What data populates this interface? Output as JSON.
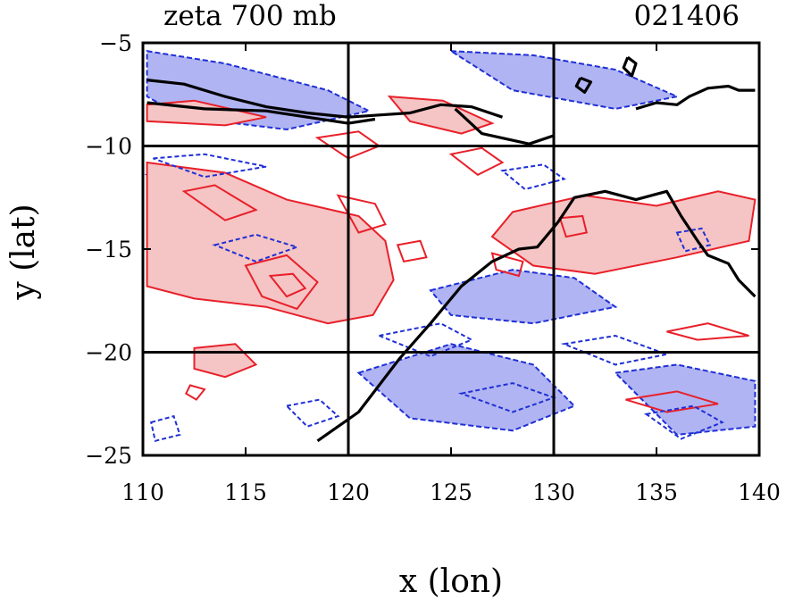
{
  "chart_data": {
    "type": "contour",
    "title": "zeta 700 mb",
    "label_right": "021406",
    "xlabel": "x (lon)",
    "ylabel": "y (lat)",
    "xlim": [
      110,
      140
    ],
    "ylim": [
      -25,
      -5
    ],
    "x_ticks": [
      110,
      115,
      120,
      125,
      130,
      135,
      140
    ],
    "x_tick_labels": [
      "110",
      "115",
      "120",
      "125",
      "130",
      "135",
      "140"
    ],
    "y_ticks": [
      -5,
      -10,
      -15,
      -20,
      -25
    ],
    "y_tick_labels": [
      "−5",
      "−10",
      "−15",
      "−20",
      "−25"
    ],
    "gridlines_lon": [
      120,
      130
    ],
    "gridlines_lat": [
      -10,
      -20
    ],
    "colors": {
      "positive_line": "#e8202a",
      "positive_fill": "#f5c4c4",
      "negative_line": "#1f2fd6",
      "negative_fill": "#b0b4f2",
      "coast": "#000000"
    },
    "positive_regions": [
      {
        "lon": [
          110.2,
          114,
          117,
          120.5,
          121.8,
          122.2,
          121.2,
          119,
          116,
          112.5,
          110.2
        ],
        "lat": [
          -10.8,
          -11.3,
          -12.6,
          -13.4,
          -14.6,
          -16.5,
          -18.2,
          -18.6,
          -17.8,
          -17.4,
          -16.8
        ]
      },
      {
        "lon": [
          112.5,
          114.5,
          115.5,
          114,
          112.5
        ],
        "lat": [
          -19.8,
          -19.6,
          -20.6,
          -21.2,
          -20.8
        ]
      },
      {
        "lon": [
          128,
          131.5,
          135,
          138,
          139.8,
          139.5,
          136,
          132,
          129,
          127,
          128
        ],
        "lat": [
          -13.2,
          -12.4,
          -12.9,
          -12.2,
          -12.6,
          -14.6,
          -15.4,
          -16.2,
          -15.8,
          -14.4,
          -13.2
        ]
      },
      {
        "lon": [
          122,
          124.6,
          127,
          125.5,
          123,
          122
        ],
        "lat": [
          -7.6,
          -7.8,
          -8.9,
          -9.4,
          -8.8,
          -7.6
        ]
      },
      {
        "lon": [
          110.2,
          112.5,
          116,
          114,
          110.2
        ],
        "lat": [
          -8.0,
          -7.8,
          -8.6,
          -9.0,
          -8.8
        ]
      }
    ],
    "negative_regions": [
      {
        "lon": [
          110.2,
          114,
          119,
          121,
          117,
          112,
          110.2
        ],
        "lat": [
          -5.4,
          -6.0,
          -7.3,
          -8.3,
          -9.2,
          -8.6,
          -7.6
        ]
      },
      {
        "lon": [
          125,
          129,
          133,
          136,
          133,
          128,
          125
        ],
        "lat": [
          -5.4,
          -5.6,
          -6.3,
          -7.6,
          -8.2,
          -7.3,
          -5.4
        ]
      },
      {
        "lon": [
          124,
          128,
          131,
          133,
          129,
          125,
          124
        ],
        "lat": [
          -17.0,
          -16.0,
          -16.4,
          -17.8,
          -18.6,
          -18.2,
          -17.0
        ]
      },
      {
        "lon": [
          120.5,
          125,
          129,
          131,
          128,
          123,
          120.5
        ],
        "lat": [
          -21.0,
          -19.6,
          -20.6,
          -22.6,
          -23.8,
          -23.2,
          -21.0
        ]
      },
      {
        "lon": [
          133,
          136,
          139.8,
          139.8,
          136,
          133
        ],
        "lat": [
          -21.0,
          -20.6,
          -21.4,
          -23.6,
          -24.0,
          -21.0
        ]
      },
      {
        "lon": [
          110.2,
          112.5,
          114,
          112.5,
          110.2
        ],
        "lat": [
          -11.4,
          -11.2,
          -12.4,
          -13.0,
          -11.4
        ]
      }
    ],
    "coastlines": [
      {
        "lon": [
          110.2,
          112,
          114,
          116,
          118,
          120,
          121.5,
          123,
          124.5,
          126,
          127.5
        ],
        "lat": [
          -6.8,
          -7.0,
          -7.6,
          -8.1,
          -8.4,
          -8.6,
          -8.5,
          -8.4,
          -8.0,
          -8.1,
          -8.6
        ]
      },
      {
        "lon": [
          110.2,
          113,
          116,
          118,
          120,
          121.3
        ],
        "lat": [
          -7.9,
          -8.2,
          -8.3,
          -8.6,
          -8.9,
          -8.7
        ]
      },
      {
        "lon": [
          118.5,
          120.5,
          122.5,
          124,
          125.5,
          127,
          128.3,
          129.2,
          130.2,
          131,
          132.5,
          134,
          135.5,
          136.2,
          137,
          137.5,
          138.5,
          139,
          139.8
        ],
        "lat": [
          -24.3,
          -22.9,
          -20.3,
          -18.6,
          -16.8,
          -15.6,
          -15.0,
          -14.9,
          -13.7,
          -12.5,
          -12.2,
          -12.6,
          -12.2,
          -13.4,
          -14.6,
          -15.3,
          -15.7,
          -16.5,
          -17.3
        ]
      },
      {
        "lon": [
          125.2,
          126.5,
          128.8,
          130
        ],
        "lat": [
          -8.2,
          -9.4,
          -9.9,
          -9.5
        ]
      },
      {
        "lon": [
          131.3,
          131.8,
          131.5,
          131.1,
          131.3
        ],
        "lat": [
          -6.7,
          -6.9,
          -7.4,
          -7.1,
          -6.7
        ]
      },
      {
        "lon": [
          134,
          135,
          136,
          136.6,
          137.5,
          138.5,
          139,
          139.8
        ],
        "lat": [
          -8.2,
          -7.9,
          -8.0,
          -7.6,
          -7.2,
          -7.1,
          -7.3,
          -7.3
        ]
      },
      {
        "lon": [
          133.6,
          134,
          133.8,
          133.4,
          133.6
        ],
        "lat": [
          -5.7,
          -6.0,
          -6.6,
          -6.2,
          -5.7
        ]
      }
    ],
    "positive_contours": [
      {
        "lon": [
          115,
          117,
          118.5,
          117.5,
          115.8,
          115
        ],
        "lat": [
          -15.8,
          -15.3,
          -16.6,
          -17.9,
          -17.3,
          -15.8
        ]
      },
      {
        "lon": [
          116.2,
          117.3,
          117.9,
          117.0,
          116.2
        ],
        "lat": [
          -16.3,
          -16.2,
          -16.9,
          -17.3,
          -16.3
        ]
      },
      {
        "lon": [
          112,
          113.5,
          115.5,
          114,
          112
        ],
        "lat": [
          -12.2,
          -11.9,
          -13.1,
          -13.6,
          -12.2
        ]
      },
      {
        "lon": [
          119.5,
          121.3,
          121.8,
          120.5,
          119.5
        ],
        "lat": [
          -12.4,
          -12.8,
          -13.8,
          -14.2,
          -12.4
        ]
      },
      {
        "lon": [
          127,
          128.5,
          128.3,
          127.2,
          127
        ],
        "lat": [
          -15.2,
          -15.6,
          -16.3,
          -16.0,
          -15.2
        ]
      },
      {
        "lon": [
          130.3,
          131.4,
          131.6,
          130.6,
          130.3
        ],
        "lat": [
          -13.5,
          -13.4,
          -14.2,
          -14.4,
          -13.5
        ]
      },
      {
        "lon": [
          135.5,
          137.5,
          139.5,
          137,
          135.5
        ],
        "lat": [
          -19.0,
          -18.6,
          -19.2,
          -19.4,
          -19.0
        ]
      },
      {
        "lon": [
          118.5,
          120.5,
          121.5,
          120.0,
          118.5
        ],
        "lat": [
          -9.6,
          -9.3,
          -10.0,
          -10.6,
          -9.6
        ]
      },
      {
        "lon": [
          125,
          126.5,
          127.5,
          126.3,
          125
        ],
        "lat": [
          -10.4,
          -10.1,
          -10.8,
          -11.4,
          -10.4
        ]
      },
      {
        "lon": [
          133.5,
          136,
          138,
          135.5,
          133.5
        ],
        "lat": [
          -22.3,
          -21.9,
          -22.5,
          -22.9,
          -22.3
        ]
      },
      {
        "lon": [
          112.3,
          113,
          112.6,
          112.1,
          112.3
        ],
        "lat": [
          -21.6,
          -21.8,
          -22.3,
          -22.0,
          -21.6
        ]
      },
      {
        "lon": [
          122.4,
          123.5,
          123.8,
          122.7,
          122.4
        ],
        "lat": [
          -14.8,
          -14.6,
          -15.4,
          -15.6,
          -14.8
        ]
      }
    ],
    "negative_contours": [
      {
        "lon": [
          113.5,
          115.5,
          117.5,
          115.5,
          113.5
        ],
        "lat": [
          -14.8,
          -14.3,
          -14.9,
          -15.6,
          -14.8
        ]
      },
      {
        "lon": [
          110.5,
          113,
          116,
          113,
          110.5
        ],
        "lat": [
          -10.6,
          -10.4,
          -11.0,
          -11.5,
          -10.6
        ]
      },
      {
        "lon": [
          121.5,
          124.5,
          126,
          124,
          121.5
        ],
        "lat": [
          -19.2,
          -18.6,
          -19.4,
          -20.2,
          -19.2
        ]
      },
      {
        "lon": [
          130.5,
          133,
          135.5,
          133,
          130.5
        ],
        "lat": [
          -19.6,
          -19.2,
          -20.1,
          -20.6,
          -19.6
        ]
      },
      {
        "lon": [
          134.5,
          136.8,
          138.2,
          136.2,
          134.5
        ],
        "lat": [
          -23.0,
          -22.6,
          -23.4,
          -24.2,
          -23.0
        ]
      },
      {
        "lon": [
          125.5,
          128,
          130,
          128,
          125.5
        ],
        "lat": [
          -22.0,
          -21.5,
          -22.2,
          -22.9,
          -22.0
        ]
      },
      {
        "lon": [
          136,
          137.2,
          137.6,
          136.4,
          136
        ],
        "lat": [
          -14.2,
          -14.0,
          -14.8,
          -15.1,
          -14.2
        ]
      },
      {
        "lon": [
          127.5,
          129.5,
          130.5,
          128.6,
          127.5
        ],
        "lat": [
          -11.2,
          -10.9,
          -11.6,
          -12.1,
          -11.2
        ]
      },
      {
        "lon": [
          110.4,
          111.5,
          111.8,
          110.6,
          110.4
        ],
        "lat": [
          -23.4,
          -23.1,
          -24.0,
          -24.3,
          -23.4
        ]
      },
      {
        "lon": [
          117,
          118.6,
          119.5,
          118,
          117
        ],
        "lat": [
          -22.6,
          -22.3,
          -23.1,
          -23.6,
          -22.6
        ]
      }
    ]
  }
}
